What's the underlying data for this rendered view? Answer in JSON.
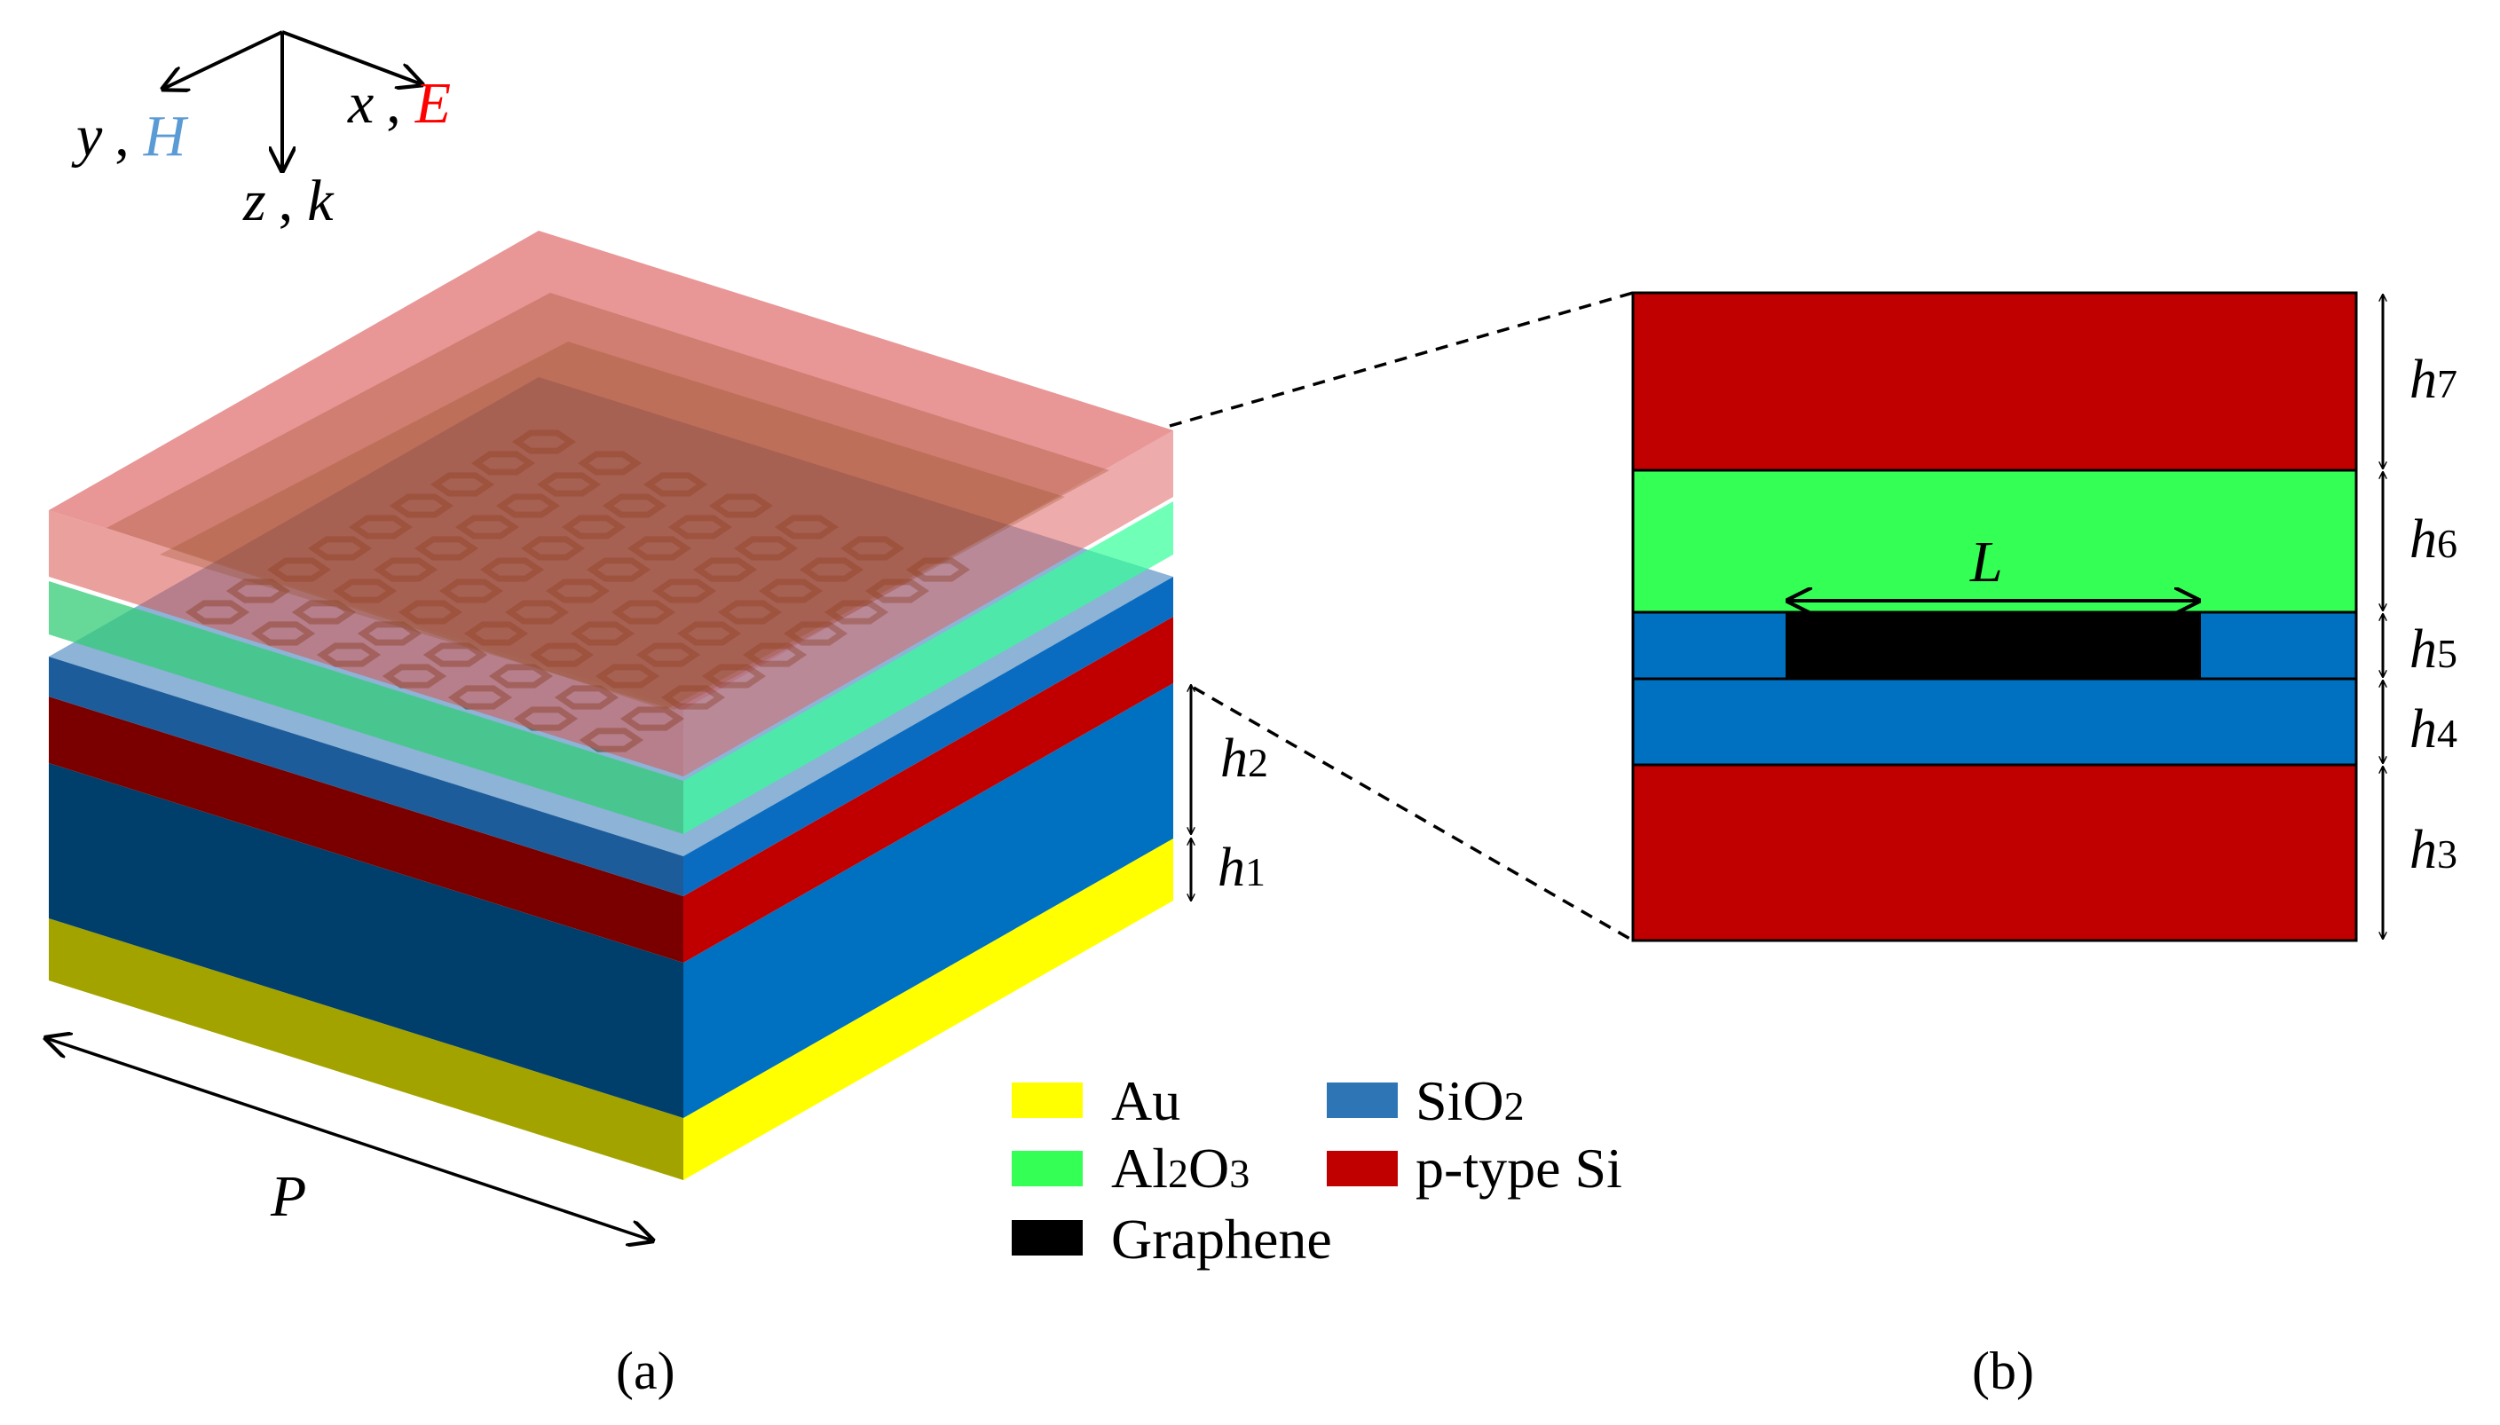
{
  "figure": {
    "axes": {
      "y_label": "y",
      "y_field": "H",
      "x_label": "x",
      "x_field": "E",
      "z_label": "z",
      "z_wave": "k",
      "sep": ","
    },
    "colors": {
      "au": "#ffff00",
      "al2o3": "#33ff55",
      "sio2": "#0070c0",
      "p_si": "#c00000",
      "graphene": "#000000",
      "h_color": "#5b9bd5",
      "e_color": "#ff0000"
    },
    "panel_a": {
      "label": "(a)",
      "period": "P",
      "h1": {
        "main": "h",
        "sub": "1"
      },
      "h2": {
        "main": "h",
        "sub": "2"
      }
    },
    "panel_b": {
      "label": "(b)",
      "length": "L",
      "h3": {
        "main": "h",
        "sub": "3"
      },
      "h4": {
        "main": "h",
        "sub": "4"
      },
      "h5": {
        "main": "h",
        "sub": "5"
      },
      "h6": {
        "main": "h",
        "sub": "6"
      },
      "h7": {
        "main": "h",
        "sub": "7"
      }
    },
    "legend": {
      "au": "Au",
      "al2o3_a": "Al",
      "al2o3_sub2": "2",
      "al2o3_o": "O",
      "al2o3_sub3": "3",
      "graphene": "Graphene",
      "sio2_a": "SiO",
      "sio2_sub": "2",
      "p_si": "p-type Si"
    }
  }
}
